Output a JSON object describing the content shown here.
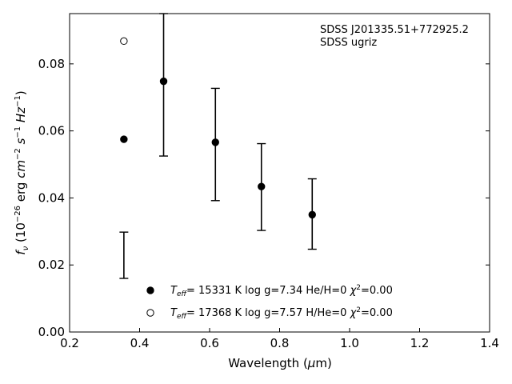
{
  "chart_data": {
    "type": "scatter",
    "xlabel": "Wavelength (μm)",
    "ylabel": "f_ν (10^-26 erg cm^-2 s^-1 Hz^-1)",
    "xlim": [
      0.2,
      1.4
    ],
    "ylim": [
      0.0,
      0.095
    ],
    "xticks": [
      "0.2",
      "0.4",
      "0.6",
      "0.8",
      "1.0",
      "1.2",
      "1.4"
    ],
    "xtick_values": [
      0.2,
      0.4,
      0.6,
      0.8,
      1.0,
      1.2,
      1.4
    ],
    "yticks": [
      "0.00",
      "0.02",
      "0.04",
      "0.06",
      "0.08"
    ],
    "ytick_values": [
      0.0,
      0.02,
      0.04,
      0.06,
      0.08
    ],
    "grid": false,
    "annotation_lines": [
      "SDSS J201335.51+772925.2",
      "SDSS ugriz"
    ],
    "observed": {
      "x": [
        0.3551,
        0.4686,
        0.6166,
        0.748,
        0.8932
      ],
      "y_low": [
        0.016,
        0.0525,
        0.0392,
        0.0303,
        0.0247
      ],
      "y_high": [
        0.0298,
        0.095,
        0.0727,
        0.0562,
        0.0457
      ]
    },
    "series": [
      {
        "name": "T_eff= 15331 K  log g=7.34  He/H=0  χ²=0.00",
        "marker": "filled",
        "x": [
          0.3551,
          0.4686,
          0.6166,
          0.748,
          0.8932
        ],
        "y": [
          0.0575,
          0.0748,
          0.0566,
          0.0434,
          0.035
        ]
      },
      {
        "name": "T_eff= 17368 K  log g=7.57  H/He=0  χ²=0.00",
        "marker": "open",
        "x": [
          0.3551
        ],
        "y": [
          0.0868
        ]
      }
    ]
  }
}
